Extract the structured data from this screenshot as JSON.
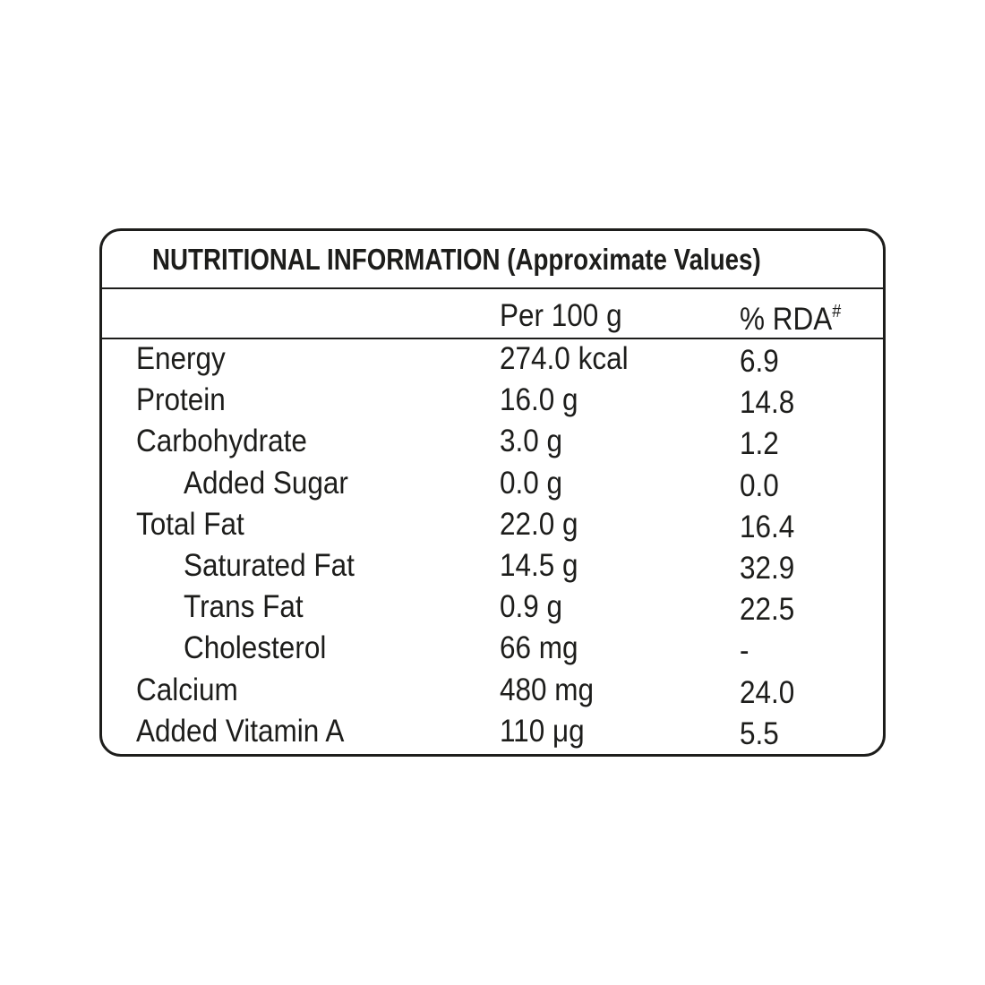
{
  "title": "NUTRITIONAL INFORMATION (Approximate Values)",
  "header": {
    "amount": "Per 100 g",
    "rda": "% RDA",
    "rda_mark": "#"
  },
  "rows": [
    {
      "label": "Energy",
      "amount": "274.0 kcal",
      "rda": "6.9"
    },
    {
      "label": "Protein",
      "amount": "16.0 g",
      "rda": "14.8"
    },
    {
      "label": "Carbohydrate",
      "amount": "3.0 g",
      "rda": "1.2",
      "children": [
        {
          "label": "Added Sugar",
          "amount": "0.0 g",
          "rda": "0.0"
        }
      ]
    },
    {
      "label": "Total Fat",
      "amount": "22.0 g",
      "rda": "16.4",
      "children": [
        {
          "label": "Saturated Fat",
          "amount": "14.5 g",
          "rda": "32.9"
        },
        {
          "label": "Trans Fat",
          "amount": "0.9 g",
          "rda": "22.5"
        },
        {
          "label": "Cholesterol",
          "amount": "66 mg",
          "rda": "-"
        }
      ]
    },
    {
      "label": "Calcium",
      "amount": "480 mg",
      "rda": "24.0"
    },
    {
      "label": "Added Vitamin A",
      "amount": "110 μg",
      "rda": "5.5"
    }
  ]
}
